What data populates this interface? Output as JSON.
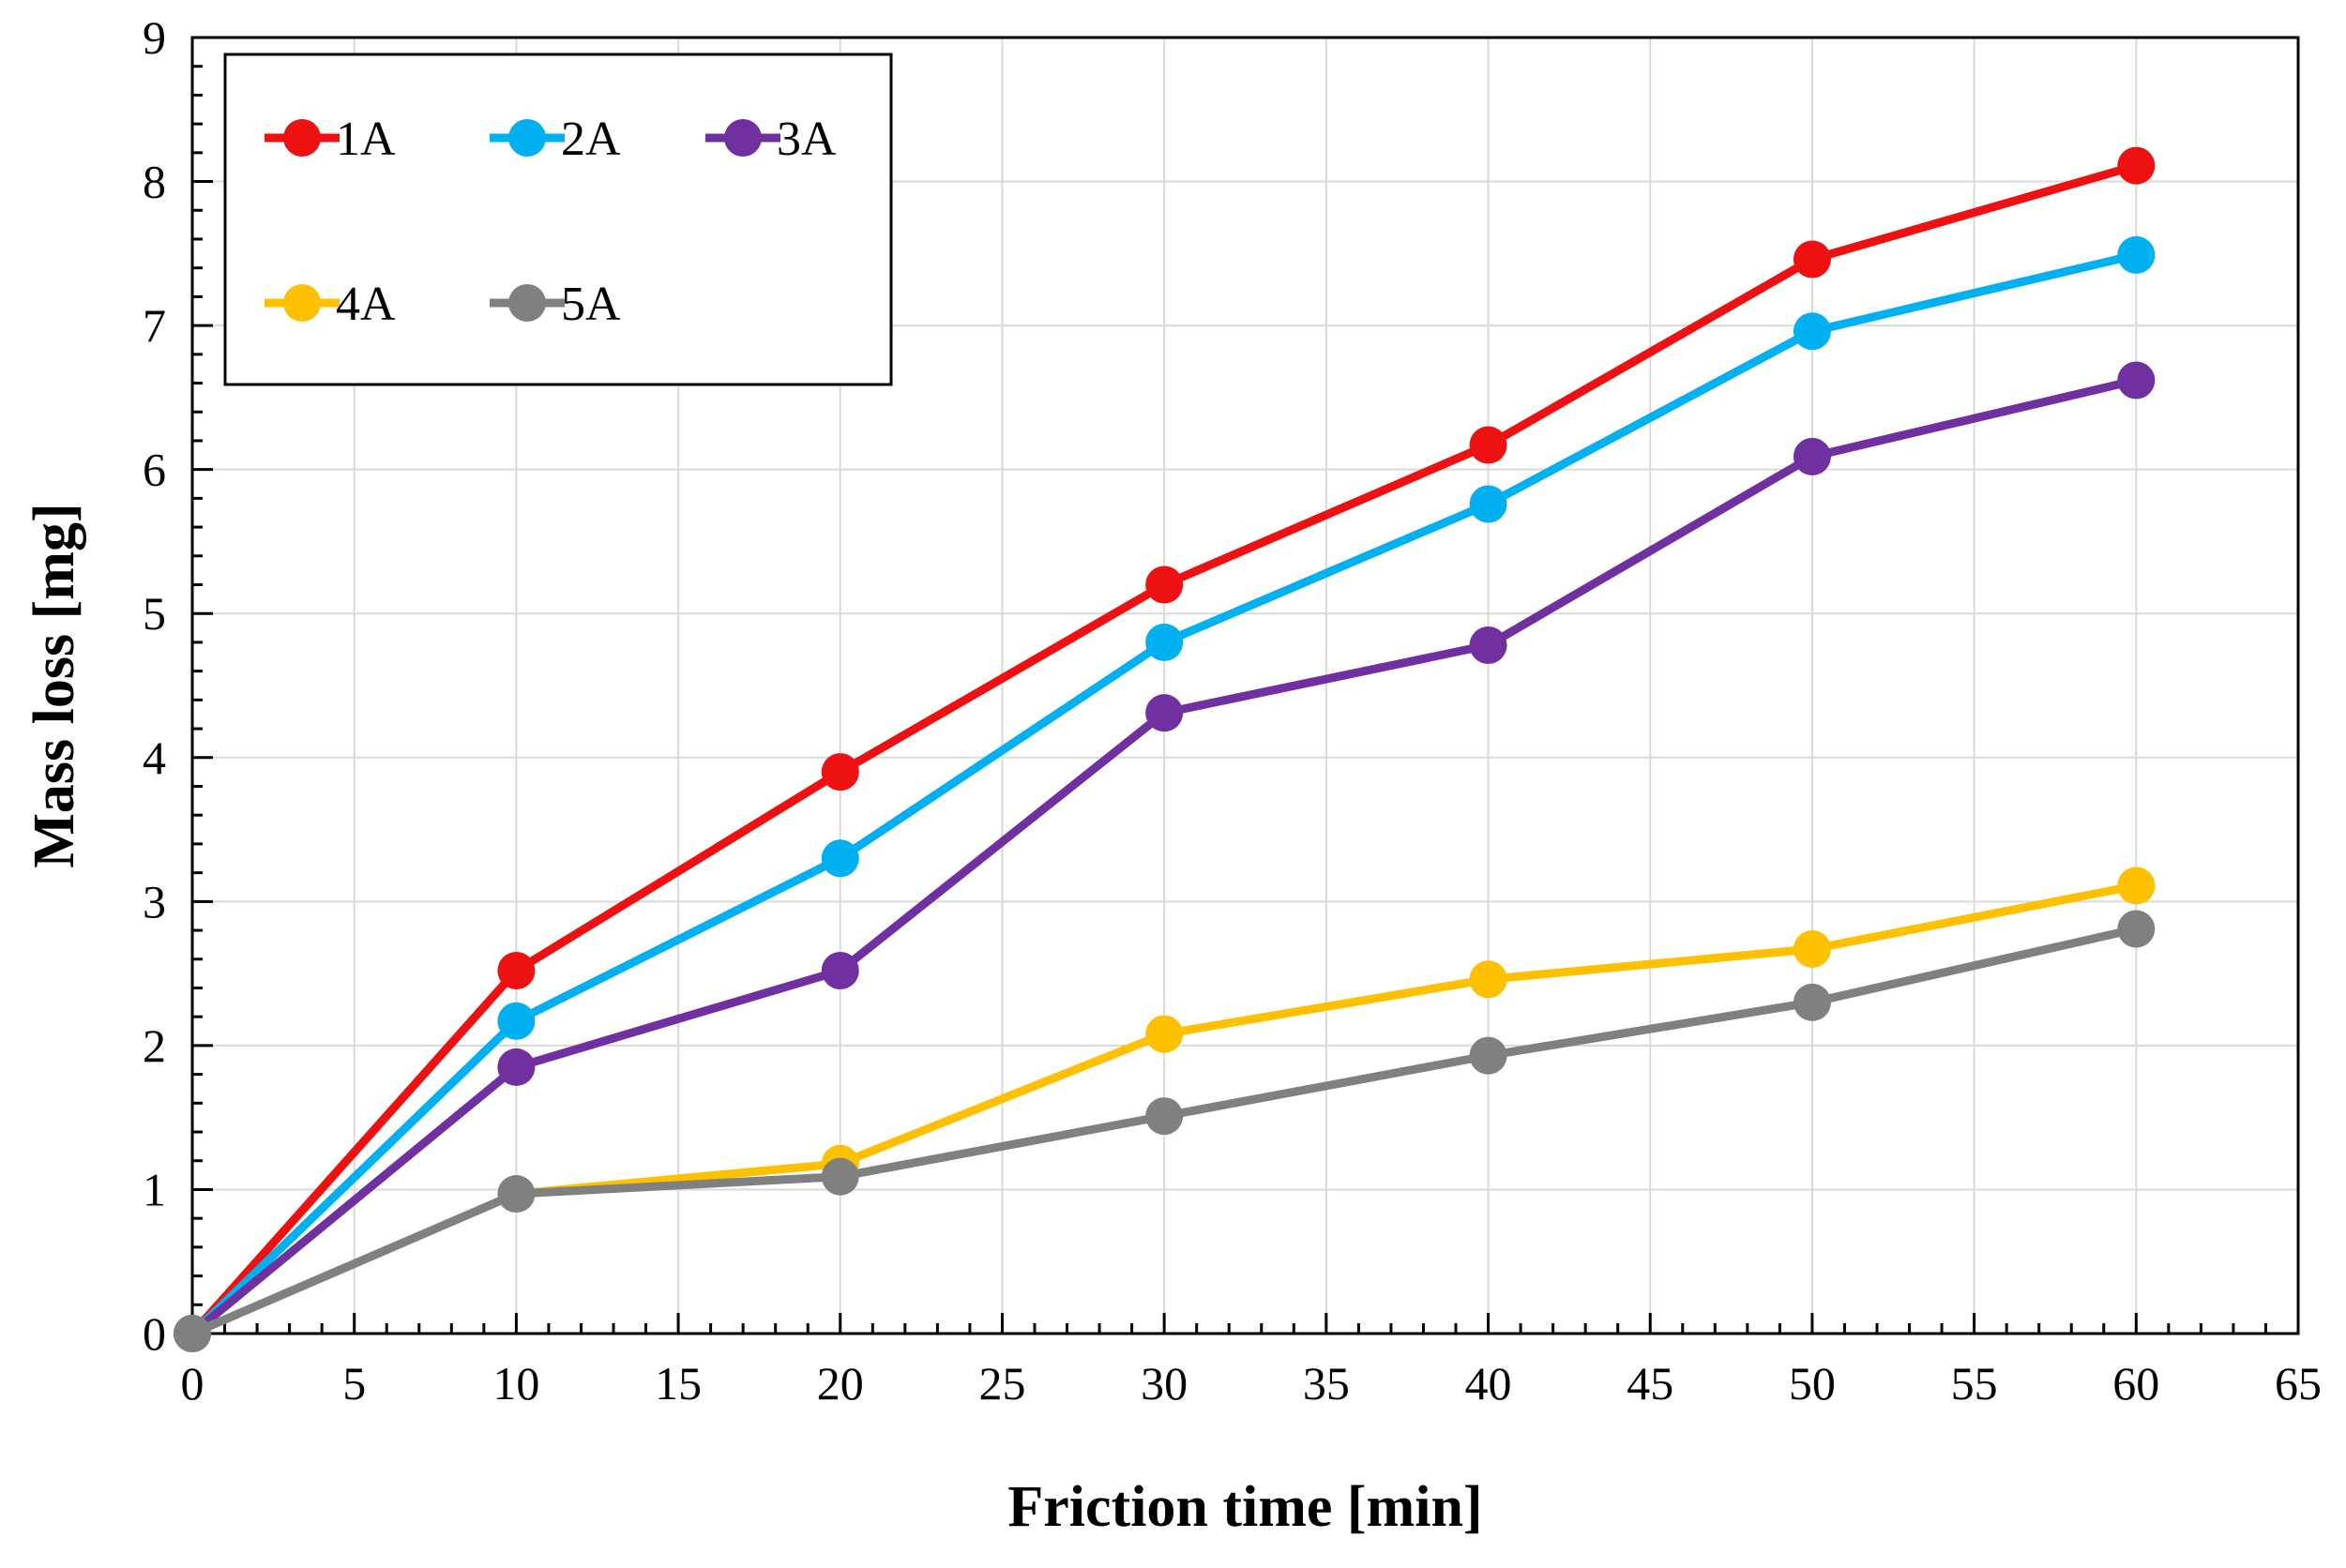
{
  "chart_data": {
    "type": "line",
    "title": "",
    "xlabel": "Friction time [min]",
    "ylabel": "Mass loss [mg]",
    "xlim": [
      0,
      65
    ],
    "ylim": [
      0,
      9
    ],
    "x_major_ticks": [
      0,
      5,
      10,
      15,
      20,
      25,
      30,
      35,
      40,
      45,
      50,
      55,
      60,
      65
    ],
    "y_major_ticks": [
      0,
      1,
      2,
      3,
      4,
      5,
      6,
      7,
      8,
      9
    ],
    "x_tick_labels": [
      "0",
      "5",
      "10",
      "15",
      "20",
      "25",
      "30",
      "35",
      "40",
      "45",
      "50",
      "55",
      "60",
      "65"
    ],
    "y_tick_labels": [
      "0",
      "1",
      "2",
      "3",
      "4",
      "5",
      "6",
      "7",
      "8",
      "9"
    ],
    "grid": true,
    "legend_position": "top-left",
    "x": [
      0,
      10,
      20,
      30,
      40,
      50,
      60
    ],
    "series": [
      {
        "name": "1A",
        "color": "#ee1111",
        "values": [
          0,
          2.52,
          3.9,
          5.2,
          6.17,
          7.46,
          8.11
        ]
      },
      {
        "name": "2A",
        "color": "#00b0f0",
        "values": [
          0,
          2.17,
          3.3,
          4.8,
          5.76,
          6.96,
          7.49
        ]
      },
      {
        "name": "3A",
        "color": "#7030a0",
        "values": [
          0,
          1.85,
          2.52,
          4.31,
          4.78,
          6.09,
          6.62
        ]
      },
      {
        "name": "4A",
        "color": "#ffc000",
        "values": [
          0,
          0.97,
          1.18,
          2.08,
          2.46,
          2.67,
          3.11
        ]
      },
      {
        "name": "5A",
        "color": "#808080",
        "values": [
          0,
          0.97,
          1.09,
          1.51,
          1.93,
          2.3,
          2.81
        ]
      }
    ]
  }
}
